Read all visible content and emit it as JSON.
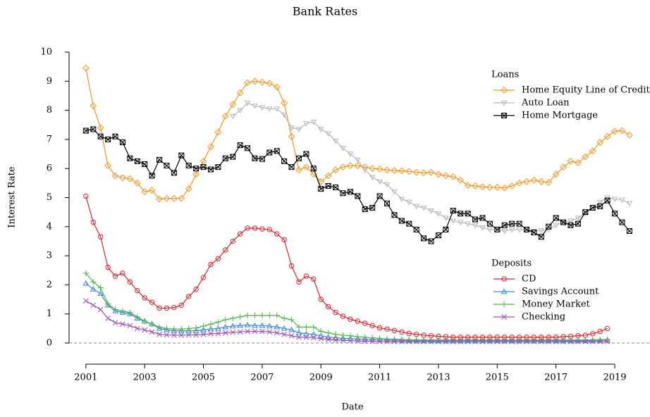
{
  "chart_data": {
    "type": "line",
    "title": "Bank Rates",
    "xlabel": "Date",
    "ylabel": "Interest Rate",
    "x": [
      2001,
      2001.25,
      2001.5,
      2001.75,
      2002,
      2002.25,
      2002.5,
      2002.75,
      2003,
      2003.25,
      2003.5,
      2003.75,
      2004,
      2004.25,
      2004.5,
      2004.75,
      2005,
      2005.25,
      2005.5,
      2005.75,
      2006,
      2006.25,
      2006.5,
      2006.75,
      2007,
      2007.25,
      2007.5,
      2007.75,
      2008,
      2008.25,
      2008.5,
      2008.75,
      2009,
      2009.25,
      2009.5,
      2009.75,
      2010,
      2010.25,
      2010.5,
      2010.75,
      2011,
      2011.25,
      2011.5,
      2011.75,
      2012,
      2012.25,
      2012.5,
      2012.75,
      2013,
      2013.25,
      2013.5,
      2013.75,
      2014,
      2014.25,
      2014.5,
      2014.75,
      2015,
      2015.25,
      2015.5,
      2015.75,
      2016,
      2016.25,
      2016.5,
      2016.75,
      2017,
      2017.25,
      2017.5,
      2017.75,
      2018,
      2018.25,
      2018.5,
      2018.75,
      2019,
      2019.25,
      2019.5
    ],
    "xlim": [
      2000.5,
      2020.2
    ],
    "ylim": [
      -0.4,
      10.4
    ],
    "xticks": [
      2001,
      2003,
      2005,
      2007,
      2009,
      2011,
      2013,
      2015,
      2017,
      2019
    ],
    "yticks": [
      0,
      1,
      2,
      3,
      4,
      5,
      6,
      7,
      8,
      9,
      10
    ],
    "hline": 0,
    "legend_groups": [
      {
        "title": "Loans",
        "series": [
          {
            "name": "Home Equity Line of Credit",
            "color": "#f7941d",
            "marker": "diamond",
            "values": [
              9.45,
              8.15,
              7.4,
              6.1,
              5.75,
              5.68,
              5.65,
              5.5,
              5.2,
              5.25,
              4.95,
              4.97,
              4.97,
              4.98,
              5.3,
              5.8,
              6.25,
              6.75,
              7.25,
              7.8,
              8.2,
              8.6,
              8.95,
              9.0,
              8.97,
              8.93,
              8.8,
              8.25,
              7.1,
              5.95,
              6.05,
              5.8,
              5.55,
              5.75,
              5.95,
              6.05,
              6.1,
              6.1,
              6.05,
              6.0,
              5.98,
              5.95,
              5.93,
              5.92,
              5.9,
              5.87,
              5.85,
              5.87,
              5.8,
              5.75,
              5.72,
              5.6,
              5.42,
              5.4,
              5.37,
              5.35,
              5.35,
              5.33,
              5.4,
              5.5,
              5.55,
              5.6,
              5.55,
              5.52,
              5.8,
              6.05,
              6.25,
              6.2,
              6.4,
              6.6,
              6.9,
              7.1,
              7.28,
              7.3,
              7.15
            ]
          },
          {
            "name": "Auto Loan",
            "color": "#b8b8b8",
            "marker": "triangle-down",
            "values": [
              null,
              null,
              null,
              null,
              null,
              null,
              null,
              null,
              null,
              null,
              null,
              null,
              null,
              null,
              null,
              null,
              null,
              null,
              null,
              null,
              7.8,
              8.0,
              8.25,
              8.15,
              8.1,
              8.05,
              8.05,
              7.85,
              7.4,
              7.35,
              7.55,
              7.6,
              7.35,
              7.2,
              6.95,
              6.7,
              6.5,
              6.3,
              5.95,
              5.7,
              5.55,
              5.45,
              5.2,
              4.95,
              4.85,
              4.7,
              4.65,
              4.55,
              4.45,
              4.3,
              4.2,
              4.15,
              4.1,
              4.05,
              3.97,
              3.9,
              3.9,
              3.85,
              3.9,
              3.9,
              3.88,
              3.85,
              3.87,
              3.9,
              4.05,
              4.15,
              4.2,
              4.3,
              4.45,
              4.65,
              4.85,
              5.0,
              4.95,
              4.92,
              4.8
            ]
          },
          {
            "name": "Home Mortgage",
            "color": "#000000",
            "marker": "square-x",
            "values": [
              7.3,
              7.35,
              7.1,
              7.0,
              7.1,
              6.9,
              6.35,
              6.25,
              6.15,
              5.75,
              6.3,
              6.1,
              5.85,
              6.45,
              6.1,
              6.0,
              6.05,
              5.97,
              6.05,
              6.35,
              6.4,
              6.8,
              6.7,
              6.35,
              6.33,
              6.55,
              6.6,
              6.25,
              6.05,
              6.35,
              6.5,
              6.0,
              5.3,
              5.4,
              5.35,
              5.15,
              5.2,
              5.05,
              4.6,
              4.65,
              5.05,
              4.8,
              4.4,
              4.2,
              4.1,
              3.9,
              3.6,
              3.5,
              3.7,
              3.9,
              4.55,
              4.45,
              4.45,
              4.25,
              4.3,
              4.1,
              3.9,
              4.05,
              4.1,
              4.1,
              3.9,
              3.8,
              3.65,
              4.0,
              4.3,
              4.15,
              4.05,
              4.1,
              4.5,
              4.65,
              4.7,
              4.9,
              4.45,
              4.15,
              3.85
            ]
          }
        ]
      },
      {
        "title": "Deposits",
        "series": [
          {
            "name": "CD",
            "color": "#e0202a",
            "marker": "circle",
            "values": [
              5.05,
              4.15,
              3.65,
              2.6,
              2.3,
              2.4,
              2.1,
              1.8,
              1.55,
              1.4,
              1.2,
              1.2,
              1.22,
              1.3,
              1.6,
              1.85,
              2.25,
              2.7,
              2.9,
              3.2,
              3.5,
              3.75,
              3.95,
              3.95,
              3.92,
              3.9,
              3.75,
              3.55,
              2.65,
              2.1,
              2.3,
              2.2,
              1.5,
              1.25,
              1.05,
              0.92,
              0.82,
              0.75,
              0.68,
              0.6,
              0.52,
              0.48,
              0.43,
              0.38,
              0.33,
              0.3,
              0.27,
              0.25,
              0.23,
              0.22,
              0.2,
              0.2,
              0.2,
              0.2,
              0.2,
              0.2,
              0.2,
              0.2,
              0.2,
              0.2,
              0.2,
              0.2,
              0.2,
              0.2,
              0.2,
              0.22,
              0.23,
              0.25,
              0.27,
              0.32,
              0.4,
              0.5,
              null,
              null,
              null
            ]
          },
          {
            "name": "Savings Account",
            "color": "#3a87d0",
            "marker": "triangle-up",
            "values": [
              2.05,
              1.85,
              1.7,
              1.3,
              1.1,
              1.05,
              1.0,
              0.85,
              0.75,
              0.65,
              0.5,
              0.45,
              0.42,
              0.42,
              0.42,
              0.42,
              0.45,
              0.48,
              0.5,
              0.55,
              0.58,
              0.6,
              0.62,
              0.6,
              0.6,
              0.58,
              0.55,
              0.5,
              0.45,
              0.35,
              0.32,
              0.3,
              0.25,
              0.2,
              0.18,
              0.16,
              0.15,
              0.14,
              0.13,
              0.12,
              0.11,
              0.1,
              0.1,
              0.09,
              0.08,
              0.07,
              0.07,
              0.07,
              0.07,
              0.07,
              0.07,
              0.07,
              0.07,
              0.07,
              0.07,
              0.07,
              0.07,
              0.07,
              0.07,
              0.07,
              0.07,
              0.07,
              0.07,
              0.07,
              0.07,
              0.07,
              0.07,
              0.07,
              0.07,
              0.08,
              0.09,
              0.1,
              null,
              null,
              null
            ]
          },
          {
            "name": "Money Market",
            "color": "#4cb84a",
            "marker": "plus",
            "values": [
              2.4,
              2.1,
              1.9,
              1.35,
              1.15,
              1.1,
              1.05,
              0.9,
              0.75,
              0.65,
              0.55,
              0.5,
              0.48,
              0.48,
              0.5,
              0.52,
              0.58,
              0.65,
              0.72,
              0.8,
              0.85,
              0.9,
              0.95,
              0.95,
              0.95,
              0.95,
              0.95,
              0.85,
              0.8,
              0.55,
              0.55,
              0.55,
              0.4,
              0.35,
              0.3,
              0.27,
              0.25,
              0.22,
              0.2,
              0.18,
              0.16,
              0.14,
              0.13,
              0.12,
              0.11,
              0.1,
              0.1,
              0.1,
              0.1,
              0.1,
              0.1,
              0.1,
              0.1,
              0.1,
              0.1,
              0.1,
              0.1,
              0.1,
              0.1,
              0.1,
              0.1,
              0.1,
              0.1,
              0.1,
              0.1,
              0.1,
              0.1,
              0.1,
              0.1,
              0.1,
              0.11,
              0.12,
              null,
              null,
              null
            ]
          },
          {
            "name": "Checking",
            "color": "#9a4fb5",
            "marker": "cross",
            "values": [
              1.45,
              1.3,
              1.15,
              0.85,
              0.7,
              0.65,
              0.6,
              0.5,
              0.45,
              0.38,
              0.3,
              0.28,
              0.27,
              0.27,
              0.28,
              0.28,
              0.3,
              0.32,
              0.33,
              0.35,
              0.37,
              0.38,
              0.4,
              0.4,
              0.4,
              0.38,
              0.35,
              0.3,
              0.25,
              0.2,
              0.2,
              0.18,
              0.15,
              0.12,
              0.1,
              0.09,
              0.08,
              0.07,
              0.06,
              0.06,
              0.05,
              0.05,
              0.05,
              0.05,
              0.05,
              0.05,
              0.05,
              0.05,
              0.05,
              0.05,
              0.05,
              0.05,
              0.05,
              0.05,
              0.05,
              0.05,
              0.05,
              0.05,
              0.05,
              0.05,
              0.05,
              0.05,
              0.05,
              0.05,
              0.05,
              0.05,
              0.05,
              0.05,
              0.05,
              0.05,
              0.05,
              0.05,
              null,
              null,
              null
            ]
          }
        ]
      }
    ]
  }
}
